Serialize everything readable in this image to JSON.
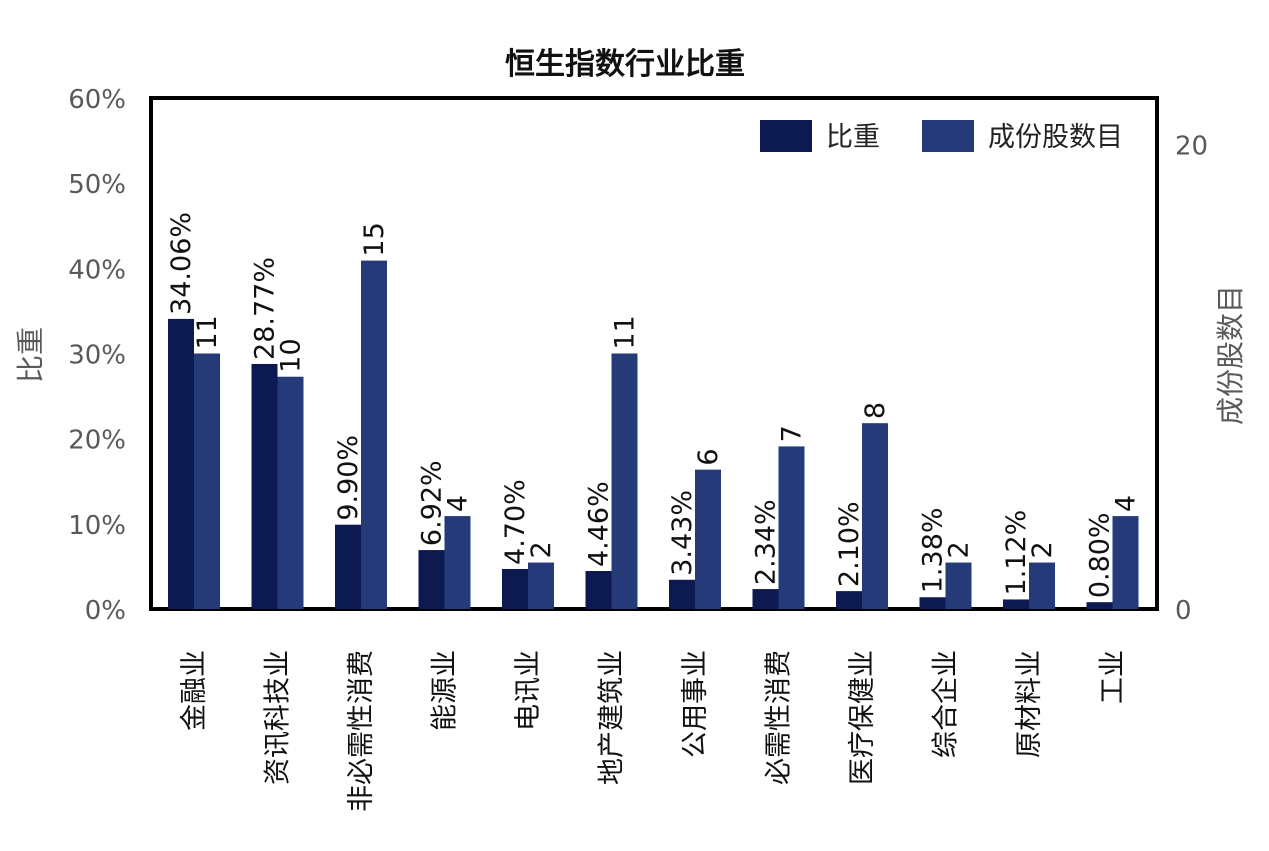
{
  "chart_data": {
    "type": "bar",
    "title": "恒生指数行业比重",
    "categories": [
      "金融业",
      "资讯科技业",
      "非必需性消费",
      "能源业",
      "电讯业",
      "地产建筑业",
      "公用事业",
      "必需性消费",
      "医疗保健业",
      "综合企业",
      "原材料业",
      "工业"
    ],
    "series": [
      {
        "name": "比重",
        "axis": "left",
        "color": "#0d1a52",
        "values": [
          34.06,
          28.77,
          9.9,
          6.92,
          4.7,
          4.46,
          3.43,
          2.34,
          2.1,
          1.38,
          1.12,
          0.8
        ],
        "labels": [
          "34.06%",
          "28.77%",
          "9.90%",
          "6.92%",
          "4.70%",
          "4.46%",
          "3.43%",
          "2.34%",
          "2.10%",
          "1.38%",
          "1.12%",
          "0.80%"
        ]
      },
      {
        "name": "成份股数目",
        "axis": "right",
        "color": "#253a78",
        "values": [
          11,
          10,
          15,
          4,
          2,
          11,
          6,
          7,
          8,
          2,
          2,
          4
        ],
        "labels": [
          "11",
          "10",
          "15",
          "4",
          "2",
          "11",
          "6",
          "7",
          "8",
          "2",
          "2",
          "4"
        ]
      }
    ],
    "ylabel": "比重",
    "y2label": "成份股数目",
    "ylim": [
      0,
      60
    ],
    "y2lim": [
      0,
      22
    ],
    "yticks": [
      "0%",
      "10%",
      "20%",
      "30%",
      "40%",
      "50%",
      "60%"
    ],
    "y2ticks": [
      "0",
      "20"
    ],
    "legend": "top-right",
    "grid": false
  }
}
